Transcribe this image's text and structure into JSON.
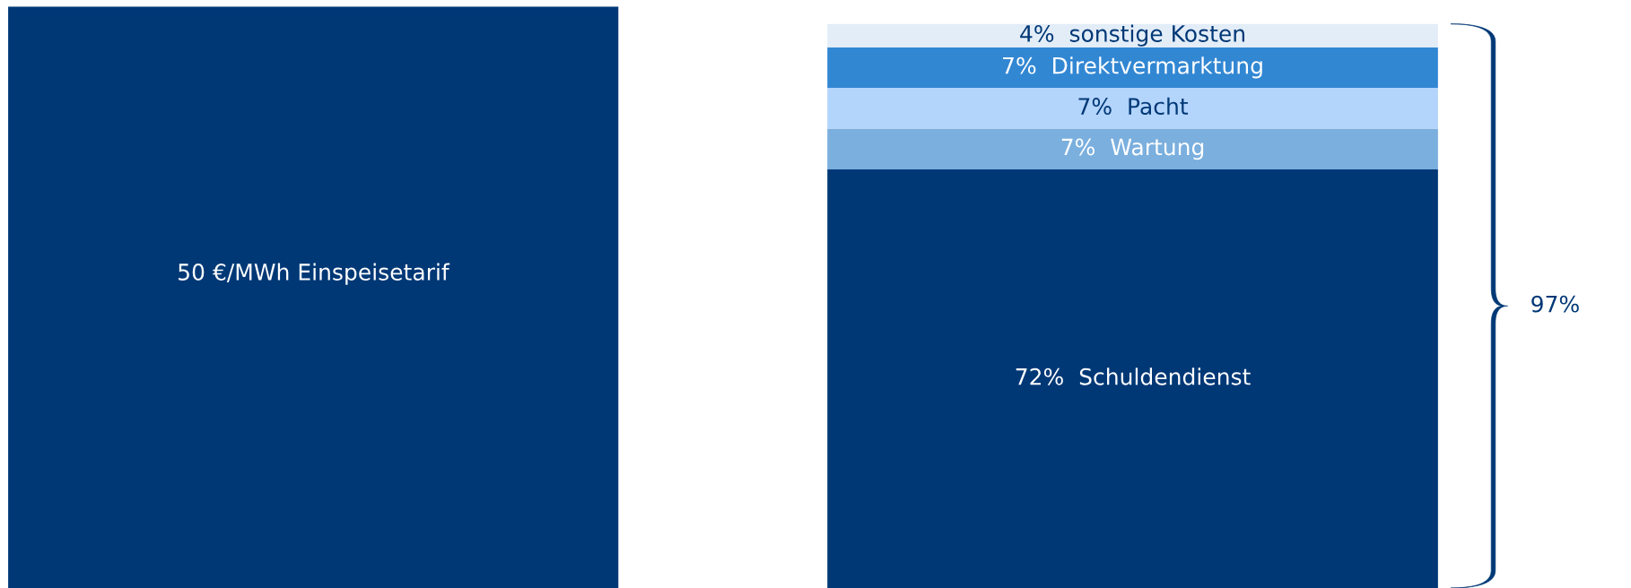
{
  "chart_data": {
    "type": "bar",
    "stacked": true,
    "categories": [
      null,
      null
    ],
    "ylim": [
      0,
      100
    ],
    "tick_labels": false,
    "series": [
      {
        "color": "#003876",
        "values": [
          100,
          72
        ],
        "value_labels": [
          null,
          "72%  Schuldendienst"
        ]
      },
      {
        "color": "#7aafde",
        "values": [
          null,
          7
        ],
        "value_labels": [
          null,
          "7%  Wartung"
        ]
      },
      {
        "color": "#b3d4fb",
        "values": [
          null,
          7
        ],
        "value_labels": [
          null,
          "7%  Pacht"
        ]
      },
      {
        "color": "#3287d3",
        "values": [
          null,
          7
        ],
        "value_labels": [
          null,
          "7%  Direktvermarktung"
        ]
      },
      {
        "color": "#e3edf8",
        "values": [
          null,
          4
        ],
        "value_labels": [
          null,
          "4%  sonstige Kosten"
        ]
      }
    ],
    "annotations": [
      "50 €/MWh Einspeisetarif",
      "97%"
    ]
  }
}
